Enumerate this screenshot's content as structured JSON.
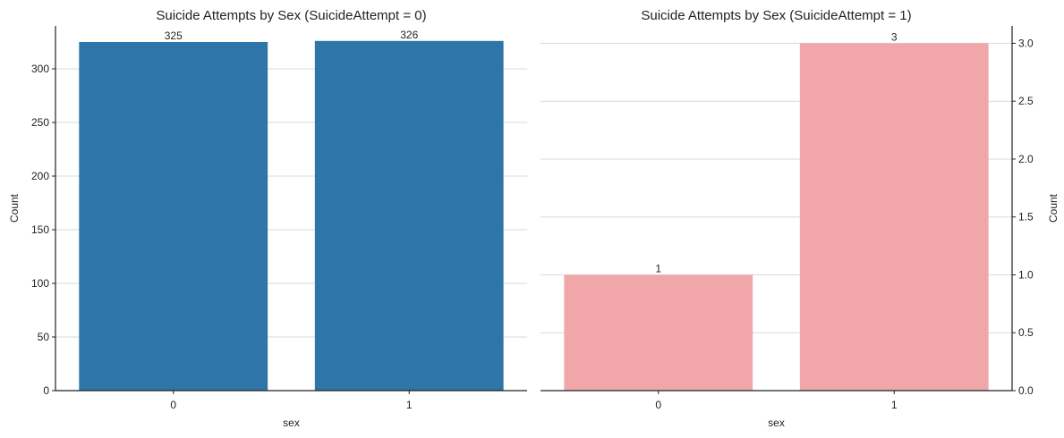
{
  "chart_data": [
    {
      "type": "bar",
      "title": "Suicide Attempts by Sex (SuicideAttempt = 0)",
      "xlabel": "sex",
      "ylabel": "Count",
      "categories": [
        "0",
        "1"
      ],
      "values": [
        325,
        326
      ],
      "value_labels": [
        "325",
        "326"
      ],
      "ylim": [
        0,
        340
      ],
      "yticks": [
        0,
        50,
        100,
        150,
        200,
        250,
        300
      ],
      "ytick_labels": [
        "0",
        "50",
        "100",
        "150",
        "200",
        "250",
        "300"
      ],
      "y_axis_side": "left",
      "grid": "horizontal",
      "bar_color": "#2E75A8"
    },
    {
      "type": "bar",
      "title": "Suicide Attempts by Sex (SuicideAttempt = 1)",
      "xlabel": "sex",
      "ylabel": "Count",
      "categories": [
        "0",
        "1"
      ],
      "values": [
        1,
        3
      ],
      "value_labels": [
        "1",
        "3"
      ],
      "ylim": [
        0,
        3.15
      ],
      "yticks": [
        0,
        0.5,
        1.0,
        1.5,
        2.0,
        2.5,
        3.0
      ],
      "ytick_labels": [
        "0.0",
        "0.5",
        "1.0",
        "1.5",
        "2.0",
        "2.5",
        "3.0"
      ],
      "y_axis_side": "right",
      "grid": "horizontal",
      "bar_color": "#F1A7A9"
    }
  ]
}
